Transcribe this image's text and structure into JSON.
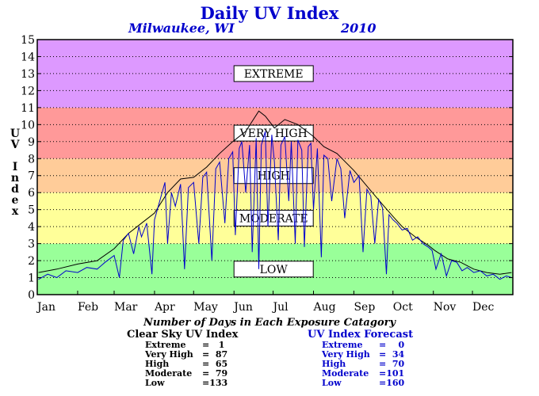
{
  "header": {
    "title": "Daily UV Index",
    "location": "Milwaukee, WI",
    "year": "2010"
  },
  "chart_data": {
    "type": "line",
    "title": "Daily UV Index",
    "subtitle": "Milwaukee, WI 2010",
    "ylabel": "UV Index",
    "xlabel": "",
    "ylim": [
      0,
      15
    ],
    "yticks": [
      "0",
      "1",
      "2",
      "3",
      "4",
      "5",
      "6",
      "7",
      "8",
      "9",
      "10",
      "11",
      "12",
      "13",
      "14",
      "15"
    ],
    "month_labels": [
      "Jan",
      "Feb",
      "Mar",
      "Apr",
      "May",
      "Jun",
      "Jul",
      "Aug",
      "Sep",
      "Oct",
      "Nov",
      "Dec"
    ],
    "xlim_days": [
      0,
      365
    ],
    "grid": "horizontal dotted",
    "bands": [
      {
        "label": "LOW",
        "from": 0,
        "to": 3,
        "color": "#99ff99"
      },
      {
        "label": "MODERATE",
        "from": 3,
        "to": 6,
        "color": "#ffff99"
      },
      {
        "label": "HIGH",
        "from": 6,
        "to": 8,
        "color": "#ffcc99"
      },
      {
        "label": "VERY HIGH",
        "from": 8,
        "to": 11,
        "color": "#ff9999"
      },
      {
        "label": "EXTREME",
        "from": 11,
        "to": 15,
        "color": "#dd99ff"
      }
    ],
    "series": [
      {
        "color": "#000000",
        "x": [
          1,
          15,
          31,
          46,
          59,
          70,
          80,
          90,
          100,
          110,
          120,
          130,
          140,
          150,
          160,
          170,
          175,
          182,
          190,
          200,
          212,
          220,
          230,
          243,
          255,
          265,
          273,
          280,
          290,
          300,
          305,
          315,
          325,
          335,
          345,
          355,
          364
        ],
        "y": [
          1.3,
          1.5,
          1.8,
          2.0,
          2.7,
          3.6,
          4.2,
          4.8,
          6.0,
          6.8,
          6.9,
          7.5,
          8.3,
          9.0,
          9.6,
          10.8,
          10.5,
          9.8,
          10.3,
          10.0,
          9.3,
          8.7,
          8.3,
          7.3,
          6.2,
          5.3,
          4.6,
          4.0,
          3.4,
          2.9,
          2.6,
          2.1,
          1.9,
          1.5,
          1.3,
          1.2,
          1.3
        ]
      },
      {
        "color": "#0000cc",
        "x": [
          1,
          8,
          15,
          22,
          31,
          38,
          46,
          52,
          59,
          63,
          66,
          70,
          74,
          78,
          80,
          84,
          88,
          90,
          94,
          98,
          100,
          103,
          106,
          110,
          113,
          116,
          120,
          124,
          127,
          130,
          134,
          137,
          140,
          144,
          147,
          150,
          152,
          155,
          157,
          160,
          163,
          165,
          168,
          170,
          172,
          175,
          177,
          180,
          182,
          185,
          187,
          190,
          193,
          195,
          198,
          200,
          203,
          205,
          208,
          210,
          212,
          215,
          218,
          220,
          223,
          226,
          230,
          233,
          236,
          240,
          243,
          247,
          250,
          253,
          256,
          259,
          262,
          265,
          268,
          270,
          273,
          276,
          280,
          284,
          288,
          292,
          296,
          300,
          303,
          306,
          310,
          314,
          318,
          322,
          326,
          330,
          335,
          340,
          345,
          350,
          355,
          360,
          364
        ],
        "y": [
          0.9,
          1.2,
          1.0,
          1.4,
          1.3,
          1.6,
          1.5,
          1.9,
          2.3,
          1.0,
          3.2,
          3.6,
          2.4,
          4.0,
          3.4,
          4.2,
          1.2,
          4.4,
          5.5,
          6.6,
          3.0,
          6.0,
          5.2,
          6.5,
          1.5,
          6.3,
          6.6,
          3.0,
          6.9,
          7.2,
          2.0,
          7.4,
          7.8,
          4.2,
          8.0,
          8.4,
          3.5,
          8.6,
          9.0,
          6.0,
          8.8,
          2.5,
          9.2,
          1.5,
          8.8,
          9.6,
          4.0,
          9.4,
          7.8,
          3.2,
          8.8,
          9.3,
          5.5,
          9.0,
          3.0,
          9.1,
          8.5,
          2.8,
          8.7,
          8.9,
          5.0,
          8.6,
          2.2,
          8.2,
          8.0,
          5.5,
          8.0,
          7.4,
          4.5,
          7.3,
          6.6,
          7.0,
          2.5,
          6.2,
          5.8,
          3.0,
          5.6,
          5.1,
          1.2,
          4.7,
          4.4,
          4.2,
          3.8,
          3.9,
          3.2,
          3.4,
          3.0,
          2.8,
          2.6,
          1.5,
          2.4,
          1.1,
          2.0,
          1.9,
          1.4,
          1.6,
          1.3,
          1.4,
          1.1,
          1.2,
          0.9,
          1.1,
          1.0
        ]
      }
    ]
  },
  "summary": {
    "title": "Number of Days in Each Exposure Catagory",
    "clear_sky": {
      "title": "Clear Sky UV Index",
      "rows": [
        {
          "label": "Extreme",
          "value": "=   1"
        },
        {
          "label": "Very High",
          "value": "=  87"
        },
        {
          "label": "High",
          "value": "=  65"
        },
        {
          "label": "Moderate",
          "value": "=  79"
        },
        {
          "label": "Low",
          "value": "=133"
        }
      ]
    },
    "forecast": {
      "title": "UV Index Forecast",
      "rows": [
        {
          "label": "Extreme",
          "value": "=    0"
        },
        {
          "label": "Very High",
          "value": "=  34"
        },
        {
          "label": "High",
          "value": "=  70"
        },
        {
          "label": "Moderate",
          "value": "=101"
        },
        {
          "label": "Low",
          "value": "=160"
        }
      ]
    }
  }
}
